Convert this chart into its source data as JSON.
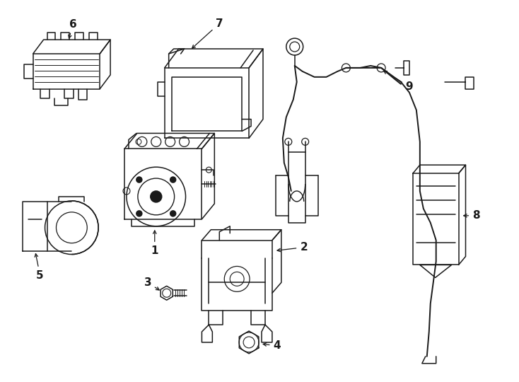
{
  "background_color": "#ffffff",
  "line_color": "#1a1a1a",
  "lw": 1.1,
  "fig_width": 7.34,
  "fig_height": 5.4,
  "dpi": 100,
  "xlim": [
    0,
    734
  ],
  "ylim": [
    0,
    540
  ]
}
